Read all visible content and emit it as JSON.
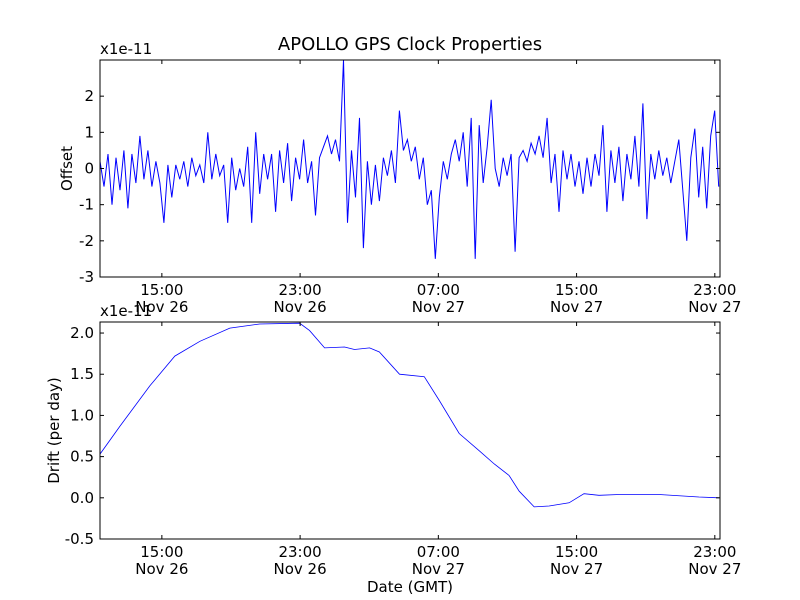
{
  "chart_data": [
    {
      "type": "line",
      "title": "APOLLO GPS Clock Properties",
      "xlabel": "",
      "ylabel": "Offset",
      "offset_text": "x1e-11",
      "xlim": [
        11.42,
        47.3
      ],
      "ylim": [
        -3,
        3
      ],
      "x_units": "hours since Nov 26 00:00 GMT",
      "xticks": [
        {
          "value": 15,
          "label": [
            "15:00",
            "Nov 26"
          ]
        },
        {
          "value": 23,
          "label": [
            "23:00",
            "Nov 26"
          ]
        },
        {
          "value": 31,
          "label": [
            "07:00",
            "Nov 27"
          ]
        },
        {
          "value": 39,
          "label": [
            "15:00",
            "Nov 27"
          ]
        },
        {
          "value": 47,
          "label": [
            "23:00",
            "Nov 27"
          ]
        }
      ],
      "yticks": [
        2,
        1,
        0,
        -1,
        -2,
        -3
      ],
      "color": "#0000ff",
      "series": [
        {
          "name": "Offset",
          "x_start": 11.42,
          "x_step": 0.231,
          "values": [
            0.2,
            -0.5,
            0.4,
            -1.0,
            0.3,
            -0.6,
            0.5,
            -1.1,
            0.4,
            -0.4,
            0.9,
            -0.3,
            0.5,
            -0.5,
            0.2,
            -0.4,
            -1.5,
            0.1,
            -0.8,
            0.1,
            -0.3,
            0.2,
            -0.5,
            0.3,
            -0.2,
            0.1,
            -0.4,
            1.0,
            -0.3,
            0.4,
            -0.2,
            0.1,
            -1.5,
            0.3,
            -0.6,
            0.0,
            -0.5,
            0.6,
            -1.5,
            1.0,
            -0.7,
            0.4,
            -0.3,
            0.4,
            -1.2,
            0.5,
            -0.4,
            0.7,
            -0.9,
            0.3,
            -0.3,
            0.8,
            -0.4,
            0.2,
            -1.3,
            0.3,
            0.6,
            0.9,
            0.4,
            0.8,
            0.2,
            3.0,
            -1.5,
            0.5,
            -0.8,
            1.4,
            -2.2,
            0.2,
            -1.0,
            0.1,
            -0.9,
            0.3,
            -0.2,
            0.5,
            -0.4,
            1.6,
            0.5,
            0.8,
            0.2,
            0.6,
            -0.3,
            0.3,
            -1.0,
            -0.6,
            -2.5,
            -0.8,
            0.2,
            -0.3,
            0.4,
            0.8,
            0.2,
            1.0,
            -0.5,
            1.4,
            -2.5,
            1.2,
            -0.4,
            0.6,
            1.9,
            0.0,
            -0.5,
            0.3,
            -0.2,
            0.4,
            -2.3,
            0.3,
            0.5,
            0.2,
            0.7,
            0.4,
            0.9,
            0.3,
            1.4,
            -0.4,
            0.4,
            -1.2,
            0.5,
            -0.3,
            0.4,
            -0.5,
            0.2,
            -0.7,
            0.3,
            -0.5,
            0.4,
            -0.2,
            1.2,
            -1.2,
            0.5,
            -0.4,
            0.6,
            -0.9,
            0.4,
            -0.3,
            0.9,
            -0.5,
            1.8,
            -1.4,
            0.4,
            -0.3,
            0.5,
            -0.2,
            0.3,
            -0.4,
            0.2,
            0.8,
            -0.6,
            -2.0,
            0.3,
            1.1,
            -0.8,
            0.6,
            -1.1,
            0.9,
            1.6,
            -0.5
          ]
        }
      ]
    },
    {
      "type": "line",
      "title": "",
      "xlabel": "Date (GMT)",
      "ylabel": "Drift (per day)",
      "offset_text": "x1e-11",
      "xlim": [
        11.42,
        47.3
      ],
      "ylim": [
        -0.5,
        2.134
      ],
      "x_units": "hours since Nov 26 00:00 GMT",
      "xticks": [
        {
          "value": 15,
          "label": [
            "15:00",
            "Nov 26"
          ]
        },
        {
          "value": 23,
          "label": [
            "23:00",
            "Nov 26"
          ]
        },
        {
          "value": 31,
          "label": [
            "07:00",
            "Nov 27"
          ]
        },
        {
          "value": 39,
          "label": [
            "15:00",
            "Nov 27"
          ]
        },
        {
          "value": 47,
          "label": [
            "23:00",
            "Nov 27"
          ]
        }
      ],
      "yticks": [
        "2.0",
        "1.5",
        "1.0",
        "0.5",
        "0.0",
        "-0.5"
      ],
      "color": "#0000ff",
      "series": [
        {
          "name": "Drift",
          "x": [
            11.42,
            12.58,
            14.31,
            15.75,
            17.2,
            18.93,
            20.66,
            22.97,
            23.55,
            24.42,
            25.57,
            26.15,
            27.02,
            27.59,
            28.75,
            30.19,
            31.06,
            32.21,
            33.37,
            34.24,
            35.1,
            35.68,
            36.55,
            37.41,
            38.57,
            39.43,
            40.3,
            41.46,
            42.62,
            43.77,
            46.08,
            47.23
          ],
          "values": [
            0.53,
            0.87,
            1.36,
            1.72,
            1.9,
            2.06,
            2.11,
            2.12,
            2.03,
            1.82,
            1.83,
            1.8,
            1.82,
            1.77,
            1.5,
            1.47,
            1.18,
            0.78,
            0.57,
            0.41,
            0.27,
            0.08,
            -0.11,
            -0.1,
            -0.06,
            0.05,
            0.03,
            0.04,
            0.04,
            0.04,
            0.01,
            0.0
          ]
        }
      ]
    }
  ]
}
